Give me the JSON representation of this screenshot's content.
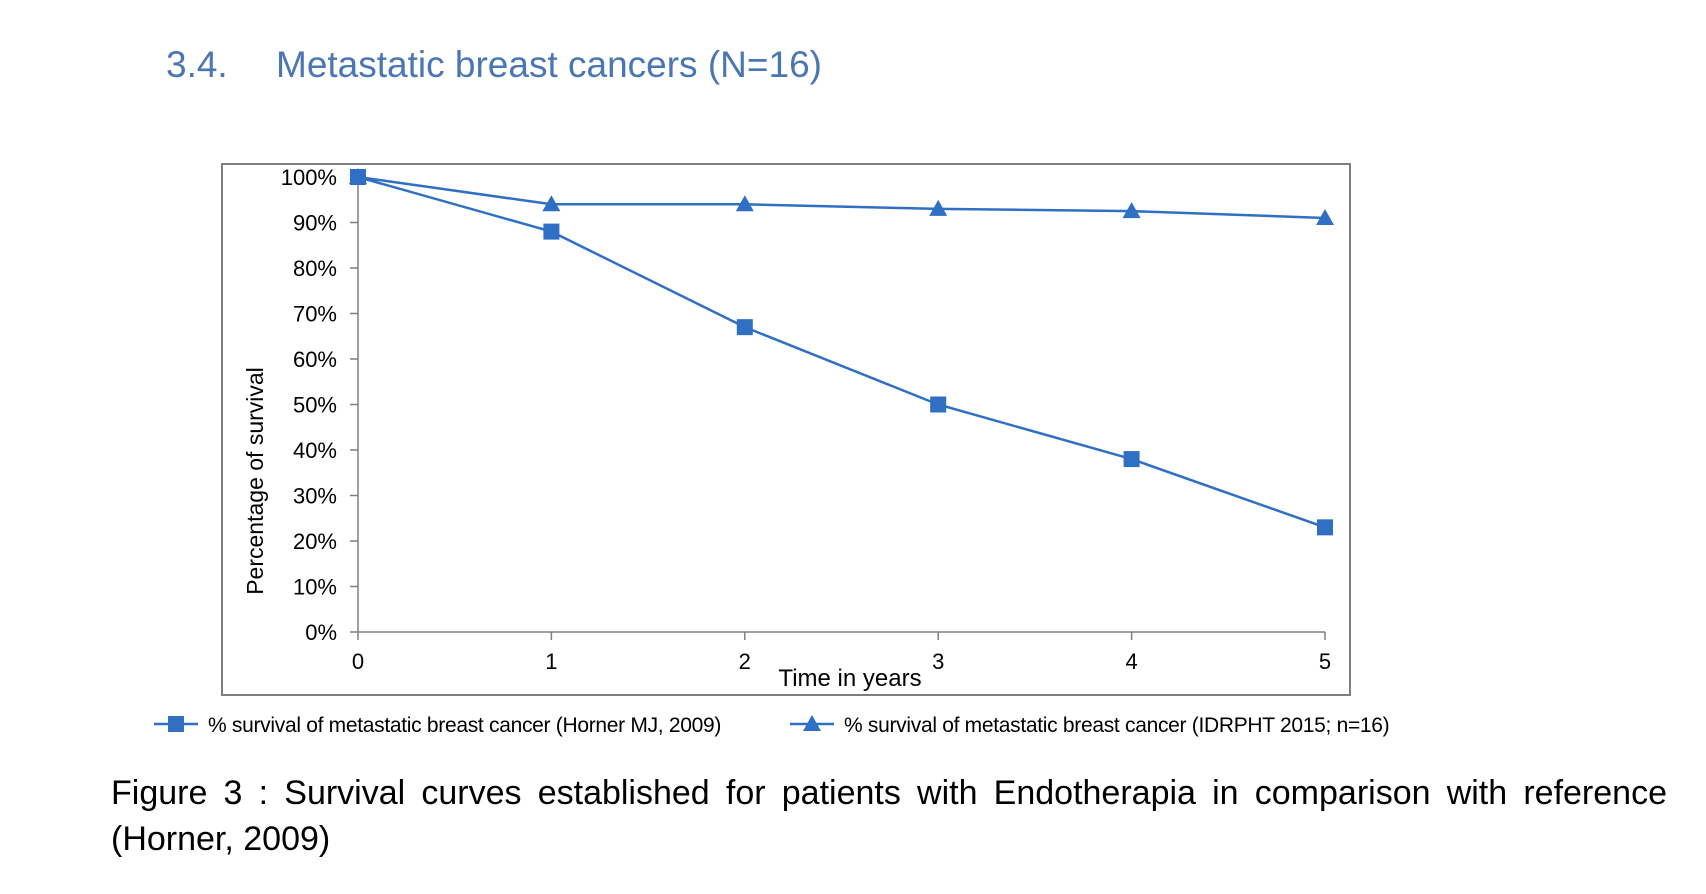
{
  "heading": {
    "number": "3.4.",
    "title": "Metastatic breast cancers (N=16)"
  },
  "caption": "Figure 3 : Survival curves established for patients with Endotherapia in comparison with reference (Horner, 2009)",
  "colors": {
    "series": "#2f6fc4",
    "heading": "#4a77b4",
    "frame": "#7f7f7f"
  },
  "chart_data": {
    "type": "line",
    "xlabel": "Time in years",
    "ylabel": "Percentage of survival",
    "x": [
      0,
      1,
      2,
      3,
      4,
      5
    ],
    "xlim": [
      0,
      5
    ],
    "ylim": [
      0,
      100
    ],
    "y_ticks": [
      "0%",
      "10%",
      "20%",
      "30%",
      "40%",
      "50%",
      "60%",
      "70%",
      "80%",
      "90%",
      "100%"
    ],
    "x_ticks": [
      "0",
      "1",
      "2",
      "3",
      "4",
      "5"
    ],
    "grid": false,
    "legend_position": "bottom",
    "series": [
      {
        "name": "% survival of metastatic breast cancer (Horner MJ, 2009)",
        "marker": "square",
        "values": [
          100,
          88,
          67,
          50,
          38,
          23
        ]
      },
      {
        "name": "% survival of metastatic breast cancer (IDRPHT 2015; n=16)",
        "marker": "triangle",
        "values": [
          100,
          94,
          94,
          93,
          92.5,
          91
        ]
      }
    ]
  }
}
